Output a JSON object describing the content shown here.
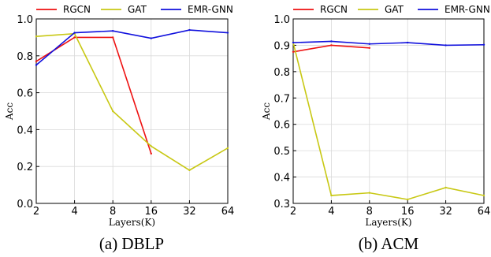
{
  "colors": {
    "RGCN": "#ee1111",
    "GAT": "#c8c814",
    "EMR-GNN": "#1111dd"
  },
  "chart_data": [
    {
      "type": "line",
      "caption": "(a) DBLP",
      "xlabel": "Layers(K)",
      "ylabel": "Acc",
      "categories": [
        "2",
        "4",
        "8",
        "16",
        "32",
        "64"
      ],
      "ylim": [
        0,
        1.0
      ],
      "yticks": [
        "0.0",
        "0.2",
        "0.4",
        "0.6",
        "0.8",
        "1.0"
      ],
      "ytick_values": [
        0,
        0.2,
        0.4,
        0.6,
        0.8,
        1.0
      ],
      "grid": true,
      "legend_position": "top",
      "series": [
        {
          "name": "RGCN",
          "values": [
            0.77,
            0.9,
            0.9,
            0.27,
            null,
            null
          ]
        },
        {
          "name": "GAT",
          "values": [
            0.905,
            0.92,
            0.5,
            0.31,
            0.18,
            0.3
          ]
        },
        {
          "name": "EMR-GNN",
          "values": [
            0.75,
            0.925,
            0.935,
            0.895,
            0.94,
            0.925
          ]
        }
      ]
    },
    {
      "type": "line",
      "caption": "(b) ACM",
      "xlabel": "Layers(K)",
      "ylabel": "Acc",
      "categories": [
        "2",
        "4",
        "8",
        "16",
        "32",
        "64"
      ],
      "ylim": [
        0.3,
        1.0
      ],
      "yticks": [
        "0.3",
        "0.4",
        "0.5",
        "0.6",
        "0.7",
        "0.8",
        "0.9",
        "1.0"
      ],
      "ytick_values": [
        0.3,
        0.4,
        0.5,
        0.6,
        0.7,
        0.8,
        0.9,
        1.0
      ],
      "grid": true,
      "legend_position": "top",
      "series": [
        {
          "name": "RGCN",
          "values": [
            0.875,
            0.9,
            0.89,
            null,
            null,
            null
          ]
        },
        {
          "name": "GAT",
          "values": [
            0.91,
            0.33,
            0.34,
            0.315,
            0.36,
            0.33
          ]
        },
        {
          "name": "EMR-GNN",
          "values": [
            0.91,
            0.915,
            0.905,
            0.91,
            0.9,
            0.902
          ]
        }
      ]
    }
  ]
}
